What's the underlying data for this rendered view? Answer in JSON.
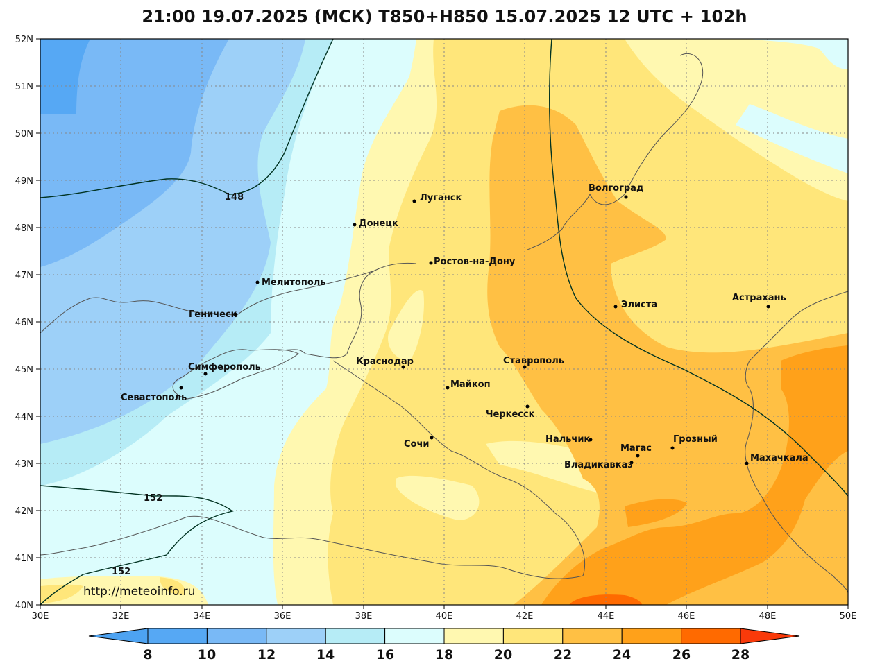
{
  "title": "21:00 19.07.2025 (МСК) T850+H850 15.07.2025 12 UTC + 102h",
  "url_label": "http://meteoinfo.ru",
  "lat_labels": [
    "52N",
    "51N",
    "50N",
    "49N",
    "48N",
    "47N",
    "46N",
    "45N",
    "44N",
    "43N",
    "42N",
    "41N",
    "40N"
  ],
  "lon_labels": [
    "30E",
    "32E",
    "34E",
    "36E",
    "38E",
    "40E",
    "42E",
    "44E",
    "46E",
    "48E",
    "50E"
  ],
  "contour_labels": [
    "148",
    "152",
    "152"
  ],
  "cities": [
    {
      "name": "Волгоград"
    },
    {
      "name": "Луганск"
    },
    {
      "name": "Донецк"
    },
    {
      "name": "Ростов-на-Дону"
    },
    {
      "name": "Мелитополь"
    },
    {
      "name": "Геническ"
    },
    {
      "name": "Элиста"
    },
    {
      "name": "Астрахань"
    },
    {
      "name": "Краснодар"
    },
    {
      "name": "Ставрополь"
    },
    {
      "name": "Симферополь"
    },
    {
      "name": "Майкоп"
    },
    {
      "name": "Севастополь"
    },
    {
      "name": "Черкесск"
    },
    {
      "name": "Нальчик"
    },
    {
      "name": "Сочи"
    },
    {
      "name": "Грозный"
    },
    {
      "name": "Магас"
    },
    {
      "name": "Махачкала"
    },
    {
      "name": "Владикавказ"
    }
  ],
  "colorbar": {
    "ticks": [
      "8",
      "10",
      "12",
      "14",
      "16",
      "18",
      "20",
      "22",
      "24",
      "26",
      "28"
    ],
    "colors": [
      "#4da3f2",
      "#56a8f4",
      "#79b9f6",
      "#9dd0f8",
      "#b6ecf6",
      "#dcfdfd",
      "#fff8b0",
      "#ffe67a",
      "#ffc044",
      "#ffa11a",
      "#ff6a00",
      "#f93a0a"
    ]
  }
}
